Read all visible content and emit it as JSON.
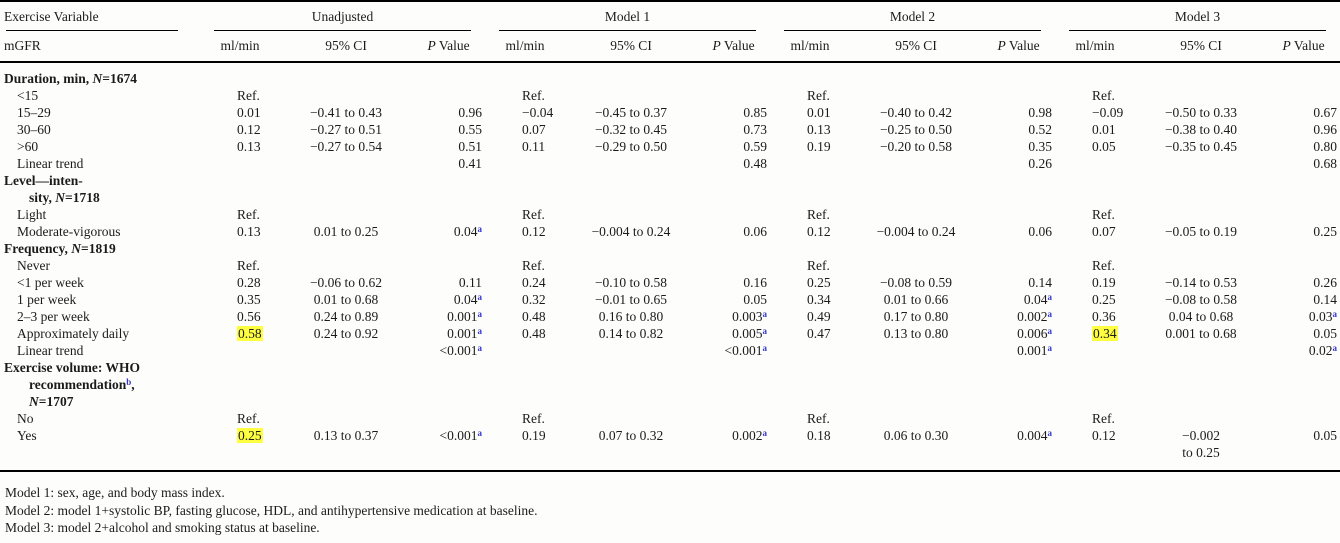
{
  "table": {
    "col1_header": "Exercise Variable",
    "col1_subheader": "mGFR",
    "groups": [
      "Unadjusted",
      "Model 1",
      "Model 2",
      "Model 3"
    ],
    "subheaders": [
      "ml/min",
      "95% CI",
      "P Value"
    ],
    "rows": [
      {
        "label": "Duration, min, N=1674",
        "bold": true,
        "indent": 0,
        "italic_n": true
      },
      {
        "label": "<15",
        "indent": 1,
        "cells": [
          {
            "ml": "Ref."
          },
          {
            "ml": "Ref."
          },
          {
            "ml": "Ref."
          },
          {
            "ml": "Ref."
          }
        ]
      },
      {
        "label": "15–29",
        "indent": 1,
        "cells": [
          {
            "ml": "0.01",
            "ci": "−0.41 to 0.43",
            "p": "0.96"
          },
          {
            "ml": "−0.04",
            "ci": "−0.45 to 0.37",
            "p": "0.85"
          },
          {
            "ml": "0.01",
            "ci": "−0.40 to 0.42",
            "p": "0.98"
          },
          {
            "ml": "−0.09",
            "ci": "−0.50 to 0.33",
            "p": "0.67"
          }
        ]
      },
      {
        "label": "30–60",
        "indent": 1,
        "cells": [
          {
            "ml": "0.12",
            "ci": "−0.27 to 0.51",
            "p": "0.55"
          },
          {
            "ml": "0.07",
            "ci": "−0.32 to 0.45",
            "p": "0.73"
          },
          {
            "ml": "0.13",
            "ci": "−0.25 to 0.50",
            "p": "0.52"
          },
          {
            "ml": "0.01",
            "ci": "−0.38 to 0.40",
            "p": "0.96"
          }
        ]
      },
      {
        "label": ">60",
        "indent": 1,
        "cells": [
          {
            "ml": "0.13",
            "ci": "−0.27 to 0.54",
            "p": "0.51"
          },
          {
            "ml": "0.11",
            "ci": "−0.29 to 0.50",
            "p": "0.59"
          },
          {
            "ml": "0.19",
            "ci": "−0.20 to 0.58",
            "p": "0.35"
          },
          {
            "ml": "0.05",
            "ci": "−0.35 to 0.45",
            "p": "0.80"
          }
        ]
      },
      {
        "label": "Linear trend",
        "indent": 1,
        "cells": [
          {
            "p": "0.41"
          },
          {
            "p": "0.48"
          },
          {
            "p": "0.26"
          },
          {
            "p": "0.68"
          }
        ]
      },
      {
        "label": "Level—inten-",
        "bold": true,
        "indent": 0
      },
      {
        "label": "sity, N=1718",
        "bold": true,
        "indent": 2,
        "italic_n": true
      },
      {
        "label": "Light",
        "indent": 1,
        "cells": [
          {
            "ml": "Ref."
          },
          {
            "ml": "Ref."
          },
          {
            "ml": "Ref."
          },
          {
            "ml": "Ref."
          }
        ]
      },
      {
        "label": "Moderate-vigorous",
        "indent": 1,
        "cells": [
          {
            "ml": "0.13",
            "ci": "0.01 to 0.25",
            "p": "0.04",
            "psup": "a"
          },
          {
            "ml": "0.12",
            "ci": "−0.004 to 0.24",
            "p": "0.06"
          },
          {
            "ml": "0.12",
            "ci": "−0.004 to 0.24",
            "p": "0.06"
          },
          {
            "ml": "0.07",
            "ci": "−0.05 to 0.19",
            "p": "0.25"
          }
        ]
      },
      {
        "label": "Frequency, N=1819",
        "bold": true,
        "indent": 0,
        "italic_n": true
      },
      {
        "label": "Never",
        "indent": 1,
        "cells": [
          {
            "ml": "Ref."
          },
          {
            "ml": "Ref."
          },
          {
            "ml": "Ref."
          },
          {
            "ml": "Ref."
          }
        ]
      },
      {
        "label": "<1 per week",
        "indent": 1,
        "cells": [
          {
            "ml": "0.28",
            "ci": "−0.06 to 0.62",
            "p": "0.11"
          },
          {
            "ml": "0.24",
            "ci": "−0.10 to 0.58",
            "p": "0.16"
          },
          {
            "ml": "0.25",
            "ci": "−0.08 to 0.59",
            "p": "0.14"
          },
          {
            "ml": "0.19",
            "ci": "−0.14 to 0.53",
            "p": "0.26"
          }
        ]
      },
      {
        "label": "1 per week",
        "indent": 1,
        "cells": [
          {
            "ml": "0.35",
            "ci": "0.01 to 0.68",
            "p": "0.04",
            "psup": "a"
          },
          {
            "ml": "0.32",
            "ci": "−0.01 to 0.65",
            "p": "0.05"
          },
          {
            "ml": "0.34",
            "ci": "0.01 to 0.66",
            "p": "0.04",
            "psup": "a"
          },
          {
            "ml": "0.25",
            "ci": "−0.08 to 0.58",
            "p": "0.14"
          }
        ]
      },
      {
        "label": "2–3 per week",
        "indent": 1,
        "cells": [
          {
            "ml": "0.56",
            "ci": "0.24 to 0.89",
            "p": "0.001",
            "psup": "a"
          },
          {
            "ml": "0.48",
            "ci": "0.16 to 0.80",
            "p": "0.003",
            "psup": "a"
          },
          {
            "ml": "0.49",
            "ci": "0.17 to 0.80",
            "p": "0.002",
            "psup": "a"
          },
          {
            "ml": "0.36",
            "ci": "0.04 to 0.68",
            "p": "0.03",
            "psup": "a"
          }
        ]
      },
      {
        "label": "Approximately daily",
        "indent": 1,
        "cells": [
          {
            "ml": "0.58",
            "hl": true,
            "ci": "0.24 to 0.92",
            "p": "0.001",
            "psup": "a"
          },
          {
            "ml": "0.48",
            "ci": "0.14 to 0.82",
            "p": "0.005",
            "psup": "a"
          },
          {
            "ml": "0.47",
            "ci": "0.13 to 0.80",
            "p": "0.006",
            "psup": "a"
          },
          {
            "ml": "0.34",
            "hl": true,
            "ci": "0.001 to 0.68",
            "p": "0.05"
          }
        ]
      },
      {
        "label": "Linear trend",
        "indent": 1,
        "cells": [
          {
            "p": "<0.001",
            "psup": "a"
          },
          {
            "p": "<0.001",
            "psup": "a"
          },
          {
            "p": "0.001",
            "psup": "a"
          },
          {
            "p": "0.02",
            "psup": "a"
          }
        ]
      },
      {
        "label": "Exercise volume: WHO",
        "bold": true,
        "indent": 0
      },
      {
        "label": "recommendation",
        "label_sup": "b",
        "label_after": ",",
        "bold": true,
        "indent": 2
      },
      {
        "label": "N=1707",
        "bold": true,
        "indent": 2,
        "italic_n": true
      },
      {
        "label": "No",
        "indent": 1,
        "cells": [
          {
            "ml": "Ref."
          },
          {
            "ml": "Ref."
          },
          {
            "ml": "Ref."
          },
          {
            "ml": "Ref."
          }
        ]
      },
      {
        "label": "Yes",
        "indent": 1,
        "cells": [
          {
            "ml": "0.25",
            "hl": true,
            "ci": "0.13 to 0.37",
            "p": "<0.001",
            "psup": "a"
          },
          {
            "ml": "0.19",
            "ci": "0.07 to 0.32",
            "p": "0.002",
            "psup": "a"
          },
          {
            "ml": "0.18",
            "ci": "0.06 to 0.30",
            "p": "0.004",
            "psup": "a"
          },
          {
            "ml": "0.12",
            "ci": "−0.002\nto 0.25",
            "p": "0.05"
          }
        ]
      }
    ],
    "footnotes": [
      "Model 1: sex, age, and body mass index.",
      "Model 2: model 1+systolic BP, fasting glucose, HDL, and antihypertensive medication at baseline.",
      "Model 3: model 2+alcohol and smoking status at baseline."
    ]
  },
  "colors": {
    "highlight": "#ffff42",
    "superscript": "#3434d2",
    "rule": "#000000"
  }
}
